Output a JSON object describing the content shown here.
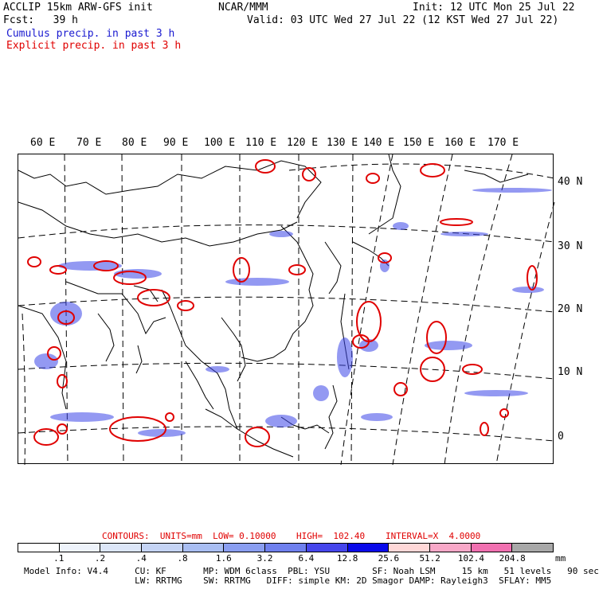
{
  "header": {
    "line1_left": "ACCLIP 15km ARW-GFS init",
    "line1_center": "NCAR/MMM",
    "line1_right": "Init: 12 UTC Mon 25 Jul 22",
    "line2_left": "Fcst:   39 h",
    "line2_right": "Valid: 03 UTC Wed 27 Jul 22 (12 KST Wed 27 Jul 22)",
    "cumulus_label": "Cumulus precip. in past 3 h",
    "explicit_label": "Explicit precip. in past 3 h"
  },
  "map": {
    "lon_labels": [
      "60 E",
      "70 E",
      "80 E",
      "90 E",
      "100 E",
      "110 E",
      "120 E",
      "130 E",
      "140 E",
      "150 E",
      "160 E",
      "170 E"
    ],
    "lat_labels": [
      "40 N",
      "30 N",
      "20 N",
      "10 N",
      "0"
    ]
  },
  "contours": {
    "label": "CONTOURS:  UNITS=mm  LOW= 0.10000",
    "high": "HIGH=  102.40",
    "interval": "INTERVAL=X  4.0000"
  },
  "legend": {
    "colors": [
      "#ffffff",
      "#eef3fb",
      "#dce6f8",
      "#c5d4f5",
      "#a9bef2",
      "#8a9ef0",
      "#6f80ee",
      "#4646ec",
      "#0a0aea",
      "#ffd8d8",
      "#f8a8c8",
      "#f070b0",
      "#a8a8a8",
      "#505050",
      "#303030",
      "#c8a0f0"
    ],
    "ticks": [
      ".1",
      ".2",
      ".4",
      ".8",
      "1.6",
      "3.2",
      "6.4",
      "12.8",
      "25.6",
      "51.2",
      "102.4",
      "204.8"
    ],
    "unit": "mm"
  },
  "footer": {
    "line1": "Model Info: V4.4     CU: KF       MP: WDM 6class  PBL: YSU        SF: Noah LSM     15 km   51 levels   90 sec",
    "line2": "                     LW: RRTMG    SW: RRTMG   DIFF: simple KM: 2D Smagor DAMP: Rayleigh3  SFLAY: MM5"
  }
}
